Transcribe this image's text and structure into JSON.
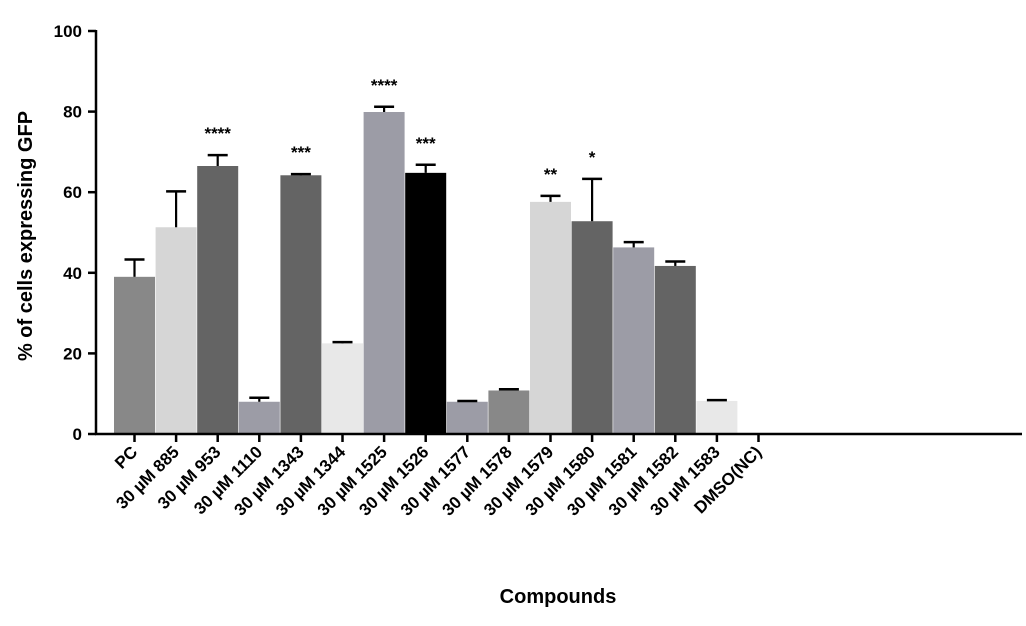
{
  "chart_data": {
    "type": "bar",
    "title": "",
    "xlabel": "Compounds",
    "ylabel": "% of cells expressing GFP",
    "ylim": [
      0,
      100
    ],
    "yticks": [
      0,
      20,
      40,
      60,
      80,
      100
    ],
    "categories": [
      "PC",
      "30 µM 885",
      "30 µM 953",
      "30 µM 1110",
      "30 µM 1343",
      "30 µM 1344",
      "30 µM 1525",
      "30 µM 1526",
      "30 µM 1577",
      "30 µM 1578",
      "30 µM 1579",
      "30 µM 1580",
      "30 µM 1581",
      "30 µM 1582",
      "30 µM 1583",
      "DMSO(NC)"
    ],
    "values": [
      39,
      51.3,
      66.5,
      8,
      64.2,
      22.5,
      79.9,
      64.8,
      8,
      10.8,
      57.6,
      52.8,
      46.3,
      41.7,
      8.2,
      0
    ],
    "errors": [
      4.3,
      8.9,
      2.7,
      1,
      0.3,
      0.3,
      1.3,
      2,
      0.2,
      0.3,
      1.5,
      10.5,
      1.3,
      1.1,
      0.2,
      0
    ],
    "significance": [
      "",
      "",
      "****",
      "",
      "***",
      "",
      "****",
      "***",
      "",
      "",
      "**",
      "*",
      "",
      "",
      "",
      ""
    ],
    "colors": [
      "#888888",
      "#d6d6d6",
      "#646464",
      "#9c9ca6",
      "#646464",
      "#e8e8e8",
      "#9c9ca6",
      "#000000",
      "#9c9ca6",
      "#888888",
      "#d6d6d6",
      "#646464",
      "#9c9ca6",
      "#646464",
      "#e8e8e8",
      "#ffffff"
    ]
  }
}
